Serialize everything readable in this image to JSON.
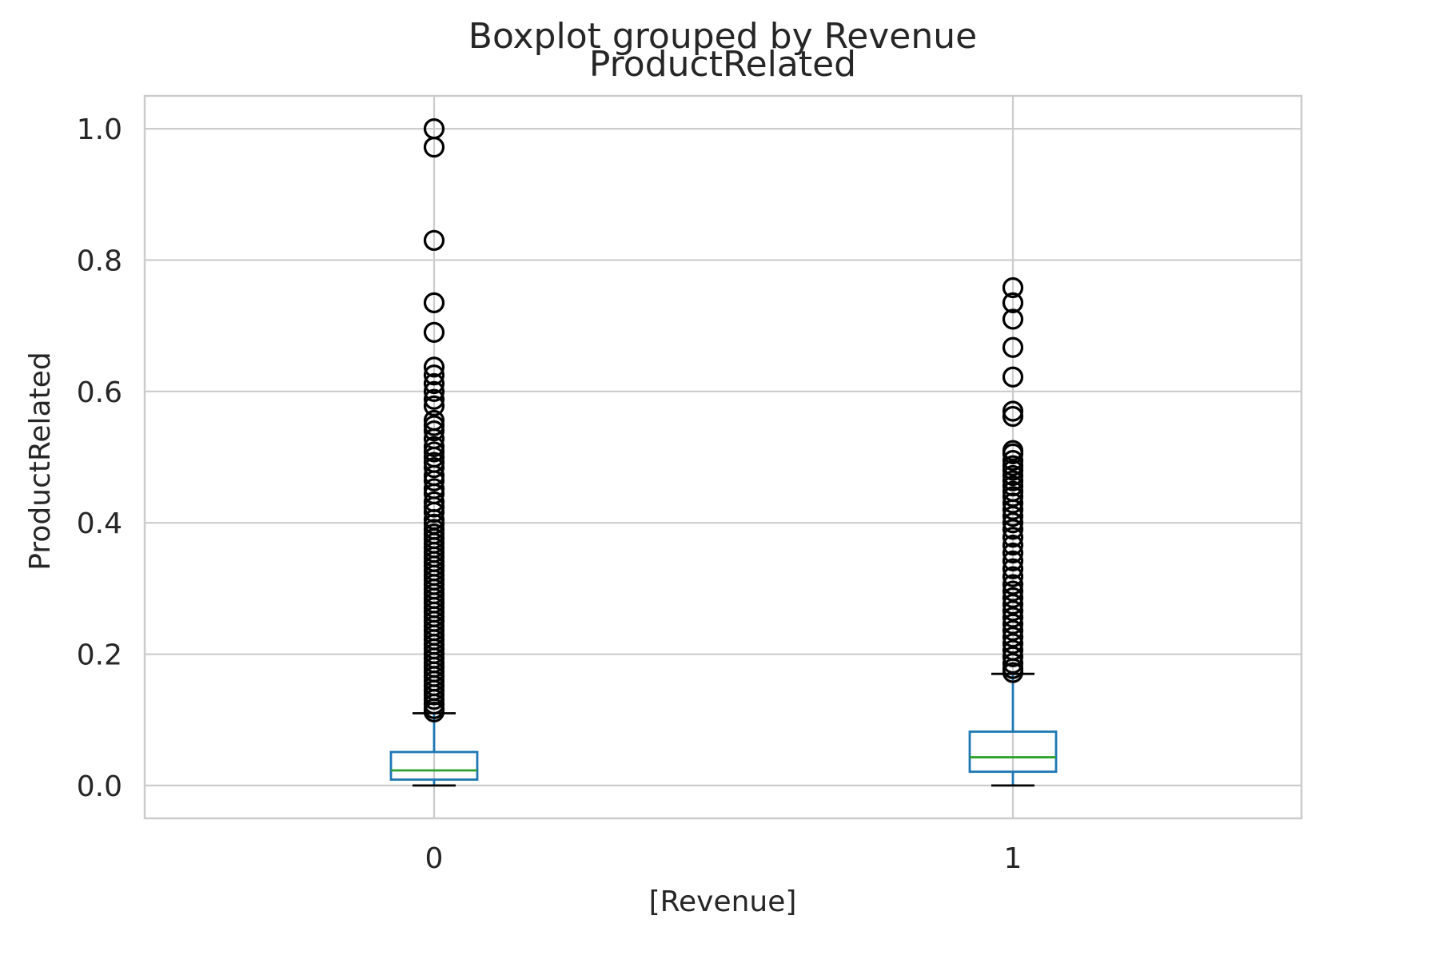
{
  "chart_data": {
    "type": "boxplot",
    "suptitle": "Boxplot grouped by Revenue",
    "title": "ProductRelated",
    "xlabel": "[Revenue]",
    "ylabel": "ProductRelated",
    "ylim": [
      -0.05,
      1.05
    ],
    "yticks": [
      0.0,
      0.2,
      0.4,
      0.6,
      0.8,
      1.0
    ],
    "ytick_labels": [
      "0.0",
      "0.2",
      "0.4",
      "0.6",
      "0.8",
      "1.0"
    ],
    "categories": [
      "0",
      "1"
    ],
    "grid": true,
    "colors": {
      "box": "#1f77b4",
      "median": "#2ca02c",
      "cap": "#000000",
      "flier": "#000000",
      "grid": "#cccccc",
      "text": "#262626"
    },
    "boxes": [
      {
        "category": "0",
        "whisker_low": 0.0,
        "q1": 0.009,
        "median": 0.023,
        "q3": 0.051,
        "whisker_high": 0.11,
        "fliers": [
          1.0,
          0.972,
          0.83,
          0.735,
          0.69,
          0.637,
          0.625,
          0.612,
          0.6,
          0.588,
          0.578,
          0.556,
          0.548,
          0.54,
          0.528,
          0.516,
          0.508,
          0.5,
          0.492,
          0.484,
          0.472,
          0.464,
          0.452,
          0.444,
          0.432,
          0.424,
          0.416,
          0.405,
          0.398,
          0.39,
          0.383,
          0.376,
          0.369,
          0.362,
          0.355,
          0.348,
          0.341,
          0.334,
          0.327,
          0.32,
          0.313,
          0.306,
          0.299,
          0.292,
          0.285,
          0.278,
          0.271,
          0.264,
          0.257,
          0.25,
          0.243,
          0.236,
          0.229,
          0.222,
          0.215,
          0.208,
          0.201,
          0.194,
          0.187,
          0.18,
          0.173,
          0.166,
          0.159,
          0.152,
          0.145,
          0.138,
          0.131,
          0.124,
          0.117,
          0.112
        ]
      },
      {
        "category": "1",
        "whisker_low": 0.0,
        "q1": 0.021,
        "median": 0.043,
        "q3": 0.082,
        "whisker_high": 0.17,
        "fliers": [
          0.758,
          0.735,
          0.71,
          0.667,
          0.622,
          0.57,
          0.562,
          0.51,
          0.505,
          0.495,
          0.487,
          0.48,
          0.472,
          0.464,
          0.456,
          0.448,
          0.44,
          0.43,
          0.42,
          0.41,
          0.4,
          0.39,
          0.378,
          0.366,
          0.354,
          0.342,
          0.33,
          0.318,
          0.306,
          0.296,
          0.286,
          0.276,
          0.266,
          0.256,
          0.246,
          0.236,
          0.226,
          0.216,
          0.206,
          0.196,
          0.186,
          0.178,
          0.172
        ]
      }
    ]
  }
}
